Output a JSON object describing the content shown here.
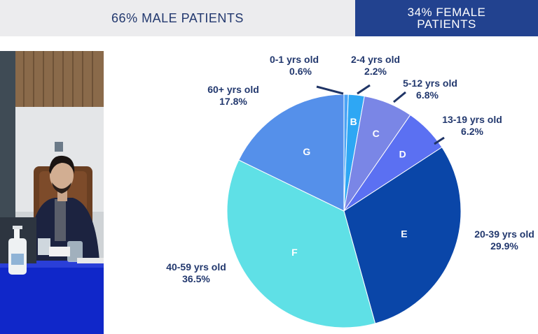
{
  "header": {
    "male_label": "66% MALE PATIENTS",
    "female_label": "34% FEMALE PATIENTS"
  },
  "photo": {
    "description_icon": "person-at-desk-photo"
  },
  "colors": {
    "male_bar_bg": "#ececee",
    "male_bar_text": "#22386e",
    "female_bar_bg": "#22428f",
    "label_text": "#22386e"
  },
  "chart_data": {
    "type": "pie",
    "title": "",
    "slices": [
      {
        "letter": "",
        "name": "0-1 yrs old",
        "value": 0.6,
        "value_label": "0.6%",
        "color": "#4aa3f5"
      },
      {
        "letter": "B",
        "name": "2-4 yrs old",
        "value": 2.2,
        "value_label": "2.2%",
        "color": "#2ea7f4"
      },
      {
        "letter": "C",
        "name": "5-12 yrs old",
        "value": 6.8,
        "value_label": "6.8%",
        "color": "#7a86e6"
      },
      {
        "letter": "D",
        "name": "13-19 yrs old",
        "value": 6.2,
        "value_label": "6.2%",
        "color": "#5b70f2"
      },
      {
        "letter": "E",
        "name": "20-39 yrs old",
        "value": 29.9,
        "value_label": "29.9%",
        "color": "#0a46a8"
      },
      {
        "letter": "F",
        "name": "40-59 yrs old",
        "value": 36.5,
        "value_label": "36.5%",
        "color": "#5fe0e6"
      },
      {
        "letter": "G",
        "name": "60+ yrs old",
        "value": 17.8,
        "value_label": "17.8%",
        "color": "#5590ea"
      }
    ]
  }
}
